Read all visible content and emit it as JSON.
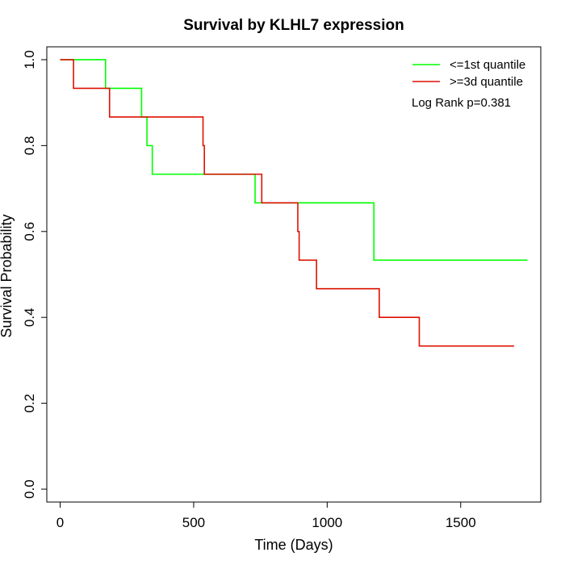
{
  "chart_data": {
    "type": "line",
    "title": "Survival by KLHL7 expression",
    "xlabel": "Time (Days)",
    "ylabel": "Survival Probability",
    "xlim": [
      -50,
      1800
    ],
    "ylim": [
      -0.03,
      1.03
    ],
    "x_ticks": [
      0,
      500,
      1000,
      1500
    ],
    "y_ticks": [
      0.0,
      0.2,
      0.4,
      0.6,
      0.8,
      1.0
    ],
    "x_tick_labels": [
      "0",
      "500",
      "1000",
      "1500"
    ],
    "y_tick_labels": [
      "0.0",
      "0.2",
      "0.4",
      "0.6",
      "0.8",
      "1.0"
    ],
    "legend_position": "top-right",
    "annotation": "Log Rank p=0.381",
    "series": [
      {
        "name": "<=1st quantile",
        "color": "#00ff00",
        "steps": [
          [
            0,
            1.0
          ],
          [
            170,
            0.9333
          ],
          [
            305,
            0.8667
          ],
          [
            325,
            0.8
          ],
          [
            345,
            0.7333
          ],
          [
            730,
            0.6667
          ],
          [
            1175,
            0.5333
          ],
          [
            1750,
            0.5333
          ]
        ]
      },
      {
        "name": ">=3d quantile",
        "color": "#dd1100",
        "steps": [
          [
            0,
            1.0
          ],
          [
            50,
            0.9333
          ],
          [
            185,
            0.8667
          ],
          [
            535,
            0.8
          ],
          [
            540,
            0.7333
          ],
          [
            755,
            0.6667
          ],
          [
            890,
            0.6
          ],
          [
            895,
            0.5333
          ],
          [
            960,
            0.4667
          ],
          [
            1195,
            0.4
          ],
          [
            1345,
            0.3333
          ],
          [
            1700,
            0.3333
          ]
        ]
      }
    ]
  }
}
